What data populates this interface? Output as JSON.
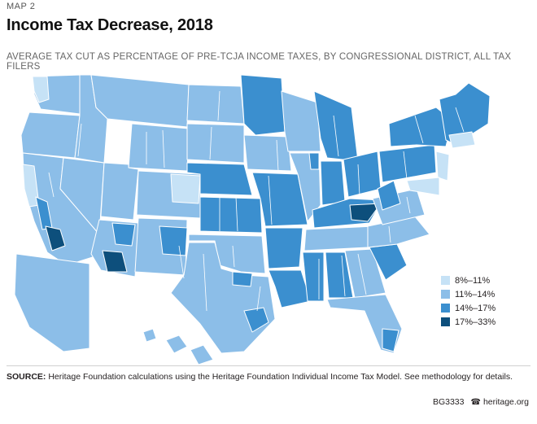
{
  "header": {
    "kicker": "MAP 2",
    "title": "Income Tax Decrease, 2018",
    "subtitle": "AVERAGE TAX CUT AS PERCENTAGE OF PRE-TCJA INCOME TAXES, BY CONGRESSIONAL DISTRICT, ALL TAX FILERS"
  },
  "colors": {
    "class_1": "#c6e2f6",
    "class_2": "#8cbee8",
    "class_3": "#3b8fcf",
    "class_4": "#0d4f7c",
    "border": "#ffffff"
  },
  "legend": {
    "items": [
      {
        "label": "8%–11%",
        "color": "#c6e2f6"
      },
      {
        "label": "11%–14%",
        "color": "#8cbee8"
      },
      {
        "label": "14%–17%",
        "color": "#3b8fcf"
      },
      {
        "label": "17%–33%",
        "color": "#0d4f7c"
      }
    ]
  },
  "source": {
    "label": "SOURCE:",
    "text": "Heritage Foundation calculations using the Heritage Foundation Individual Income Tax Model. See methodology for details."
  },
  "footer": {
    "code": "BG3333",
    "site": "heritage.org",
    "icon": "liberty-bell-icon"
  }
}
